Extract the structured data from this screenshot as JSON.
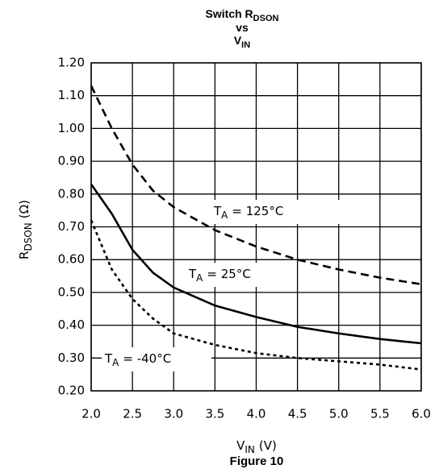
{
  "chart_data": {
    "type": "line",
    "title": [
      [
        "Switch R",
        "DSON"
      ],
      [
        "vs"
      ],
      [
        "V",
        "IN"
      ]
    ],
    "x_label": [
      "V",
      "IN",
      "(V)"
    ],
    "y_label": [
      "R",
      "DSON",
      "(Ω)"
    ],
    "caption": "Figure 10",
    "x": [
      2.0,
      2.25,
      2.5,
      2.75,
      3.0,
      3.5,
      4.0,
      4.5,
      5.0,
      5.5,
      6.0
    ],
    "series": [
      {
        "name": [
          "T",
          "A",
          "= 125°C"
        ],
        "color": "#000000",
        "dash": "10,6",
        "values": [
          1.13,
          1.0,
          0.89,
          0.81,
          0.76,
          0.69,
          0.64,
          0.6,
          0.57,
          0.545,
          0.525
        ]
      },
      {
        "name": [
          "T",
          "A",
          "= 25°C"
        ],
        "color": "#000000",
        "dash": "none",
        "values": [
          0.83,
          0.74,
          0.63,
          0.56,
          0.515,
          0.46,
          0.425,
          0.395,
          0.375,
          0.358,
          0.345
        ]
      },
      {
        "name": [
          "T",
          "A",
          "= -40°C"
        ],
        "color": "#000000",
        "dash": "4,4",
        "values": [
          0.72,
          0.57,
          0.48,
          0.42,
          0.375,
          0.34,
          0.315,
          0.3,
          0.29,
          0.28,
          0.265
        ]
      }
    ],
    "xlim": [
      2.0,
      6.0
    ],
    "xticks": [
      {
        "value": 2,
        "label": "2.0"
      },
      {
        "value": 2.5,
        "label": "2.5"
      },
      {
        "value": 3,
        "label": "3.0"
      },
      {
        "value": 3.5,
        "label": "3.5"
      },
      {
        "value": 4,
        "label": "4.0"
      },
      {
        "value": 4.5,
        "label": "4.5"
      },
      {
        "value": 5,
        "label": "5.0"
      },
      {
        "value": 5.5,
        "label": "5.5"
      },
      {
        "value": 6,
        "label": "6.0"
      }
    ],
    "ylim": [
      0.2,
      1.2
    ],
    "yticks": [
      {
        "value": 0.2,
        "label": "0.20"
      },
      {
        "value": 0.3,
        "label": "0.30"
      },
      {
        "value": 0.4,
        "label": "0.40"
      },
      {
        "value": 0.5,
        "label": "0.50"
      },
      {
        "value": 0.6,
        "label": "0.60"
      },
      {
        "value": 0.7,
        "label": "0.70"
      },
      {
        "value": 0.8,
        "label": "0.80"
      },
      {
        "value": 0.9,
        "label": "0.90"
      },
      {
        "value": 1.0,
        "label": "1.00"
      },
      {
        "value": 1.1,
        "label": "1.10"
      },
      {
        "value": 1.2,
        "label": "1.20"
      }
    ],
    "grid": true
  }
}
